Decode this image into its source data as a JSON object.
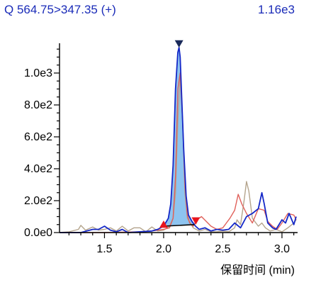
{
  "header": {
    "transition": "Q 564.75>347.35 (+)",
    "max_intensity": "1.16e3"
  },
  "chart_data": {
    "type": "line",
    "title": "Q 564.75>347.35 (+)",
    "xlabel": "保留时间  (min)",
    "ylabel": "",
    "xlim": [
      1.12,
      3.12
    ],
    "ylim": [
      0,
      1160
    ],
    "x_ticks": [
      1.5,
      2.0,
      2.5,
      3.0
    ],
    "x_tick_labels": [
      "1.5",
      "2.0",
      "2.5",
      "3.0"
    ],
    "y_ticks": [
      0,
      200,
      400,
      600,
      800,
      1000
    ],
    "y_tick_labels": [
      "0.0e0",
      "2.0e2",
      "4.0e2",
      "6.0e2",
      "8.0e2",
      "1.0e3"
    ],
    "grid": false,
    "colors": {
      "main": "#1428c8",
      "red": "#e0605a",
      "tan": "#b4a48c",
      "fill": "#8ec4f0",
      "baseline": "#000000"
    },
    "series": [
      {
        "color": "#b4a48c",
        "x": [
          1.12,
          1.2,
          1.28,
          1.3,
          1.34,
          1.4,
          1.45,
          1.5,
          1.55,
          1.6,
          1.65,
          1.7,
          1.75,
          1.8,
          1.85,
          1.9,
          1.95,
          2.0,
          2.05,
          2.08,
          2.1,
          2.12,
          2.14,
          2.16,
          2.18,
          2.2,
          2.25,
          2.3,
          2.35,
          2.4,
          2.45,
          2.5,
          2.55,
          2.6,
          2.62,
          2.65,
          2.68,
          2.7,
          2.72,
          2.75,
          2.78,
          2.8,
          2.83,
          2.86,
          2.9,
          2.95,
          3.0,
          3.05,
          3.1,
          3.12
        ],
        "y": [
          0,
          5,
          20,
          45,
          15,
          35,
          15,
          20,
          30,
          10,
          40,
          10,
          30,
          30,
          5,
          35,
          10,
          15,
          40,
          90,
          250,
          700,
          980,
          700,
          250,
          90,
          30,
          10,
          20,
          5,
          5,
          10,
          5,
          30,
          80,
          50,
          200,
          320,
          260,
          90,
          60,
          40,
          60,
          30,
          10,
          20,
          5,
          30,
          60,
          80
        ]
      },
      {
        "color": "#e0605a",
        "x": [
          1.12,
          1.5,
          1.8,
          1.9,
          1.95,
          2.0,
          2.05,
          2.08,
          2.1,
          2.12,
          2.14,
          2.16,
          2.18,
          2.2,
          2.22,
          2.25,
          2.28,
          2.32,
          2.36,
          2.4,
          2.45,
          2.5,
          2.53,
          2.56,
          2.6,
          2.63,
          2.66,
          2.7,
          2.75,
          2.8,
          2.85,
          2.88,
          2.92,
          2.96,
          3.0,
          3.05,
          3.1,
          3.12
        ],
        "y": [
          0,
          0,
          5,
          10,
          15,
          20,
          30,
          90,
          350,
          900,
          1000,
          700,
          300,
          110,
          60,
          40,
          80,
          100,
          70,
          40,
          20,
          30,
          60,
          90,
          140,
          240,
          180,
          120,
          60,
          150,
          140,
          70,
          40,
          20,
          60,
          120,
          110,
          80
        ]
      },
      {
        "color": "#1428c8",
        "x": [
          1.12,
          1.2,
          1.3,
          1.35,
          1.4,
          1.45,
          1.5,
          1.55,
          1.6,
          1.65,
          1.7,
          1.8,
          1.9,
          1.95,
          2.0,
          2.04,
          2.06,
          2.08,
          2.1,
          2.12,
          2.13,
          2.14,
          2.15,
          2.17,
          2.19,
          2.21,
          2.24,
          2.27,
          2.3,
          2.35,
          2.4,
          2.45,
          2.5,
          2.55,
          2.6,
          2.65,
          2.7,
          2.75,
          2.8,
          2.83,
          2.85,
          2.88,
          2.92,
          2.95,
          3.0,
          3.03,
          3.06,
          3.1,
          3.12
        ],
        "y": [
          0,
          0,
          0,
          10,
          20,
          20,
          40,
          15,
          5,
          20,
          0,
          5,
          10,
          20,
          40,
          90,
          180,
          420,
          900,
          1130,
          1160,
          1100,
          900,
          520,
          230,
          110,
          70,
          40,
          20,
          30,
          10,
          20,
          15,
          20,
          60,
          30,
          100,
          120,
          150,
          250,
          180,
          60,
          30,
          20,
          80,
          60,
          120,
          50,
          100
        ]
      }
    ],
    "peak": {
      "start_x": 2.0,
      "apex_x": 2.13,
      "end_x": 2.26,
      "apex_y": 1160
    }
  }
}
